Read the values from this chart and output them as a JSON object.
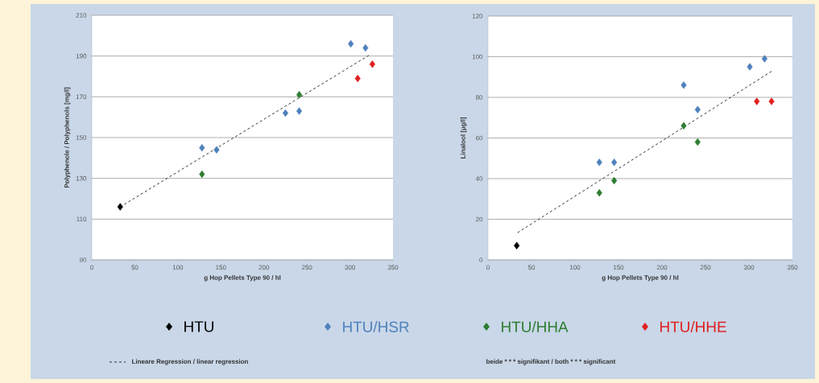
{
  "chart_data": [
    {
      "type": "scatter",
      "xlabel": "g Hop Pellets Type 90 / hl",
      "ylabel": "Polyphenole / Polyphenols [mg/l]",
      "xlim": [
        0,
        350
      ],
      "xticks": [
        0,
        50,
        100,
        150,
        200,
        250,
        300,
        350
      ],
      "ylim": [
        90,
        210
      ],
      "yticks": [
        90,
        110,
        130,
        150,
        170,
        190,
        210
      ],
      "grid": "y",
      "marker": "diamond",
      "legend": "bottom",
      "series": [
        {
          "name": "HTU",
          "color": "#000000",
          "x": [
            33
          ],
          "values": [
            116
          ]
        },
        {
          "name": "HTU/HSR",
          "color": "#4f81bd",
          "x": [
            128,
            145,
            225,
            241,
            301,
            318
          ],
          "values": [
            145,
            144,
            162,
            163,
            196,
            194
          ]
        },
        {
          "name": "HTU/HHA",
          "color": "#2e7d32",
          "x": [
            128,
            241
          ],
          "values": [
            132,
            171
          ]
        },
        {
          "name": "HTU/HHE",
          "color": "#e02020",
          "x": [
            309,
            326
          ],
          "values": [
            179,
            186
          ]
        },
        {
          "name": "Lineare Regression / linear regression",
          "type": "line",
          "line_style": "dashed",
          "marker": "none",
          "color": "#000000",
          "x": [
            33,
            323
          ],
          "values": [
            116,
            190.6
          ]
        }
      ]
    },
    {
      "type": "scatter",
      "xlabel": "g Hop Pellets Type 90 / hl",
      "ylabel": "Linalool [µg/l]",
      "xlim": [
        0,
        350
      ],
      "xticks": [
        0,
        50,
        100,
        150,
        200,
        250,
        300,
        350
      ],
      "ylim": [
        0,
        120
      ],
      "yticks": [
        0,
        20,
        40,
        60,
        80,
        100,
        120
      ],
      "grid": "y",
      "marker": "diamond",
      "annotations": [
        "beide * * * signifikant / both * * * significant"
      ],
      "series": [
        {
          "color": "#000000",
          "x": [
            33
          ],
          "values": [
            7
          ]
        },
        {
          "color": "#4f81bd",
          "x": [
            128,
            145,
            225,
            241,
            301,
            318
          ],
          "values": [
            48,
            48,
            86,
            74,
            95,
            99
          ]
        },
        {
          "color": "#2e7d32",
          "x": [
            128,
            145,
            225,
            241
          ],
          "values": [
            33,
            39,
            66,
            58
          ]
        },
        {
          "color": "#e02020",
          "x": [
            309,
            326
          ],
          "values": [
            78,
            78
          ]
        },
        {
          "type": "line",
          "line_style": "dashed",
          "marker": "none",
          "color": "#000000",
          "x": [
            34,
            326
          ],
          "values": [
            13.4,
            92.8
          ]
        }
      ]
    }
  ]
}
